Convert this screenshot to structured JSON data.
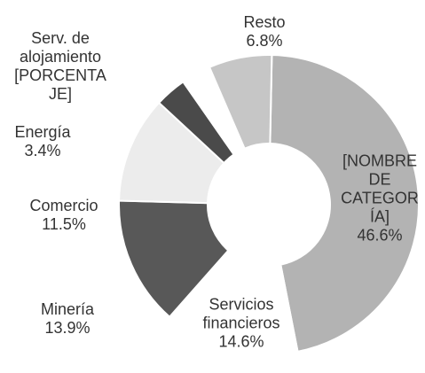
{
  "chart_data": {
    "type": "donut",
    "categories": [
      "[NOMBRE DE CATEGORÍA]",
      "Servicios financieros",
      "Minería",
      "Comercio",
      "Energía",
      "Serv. de alojamiento",
      "Resto"
    ],
    "values": [
      46.6,
      14.6,
      13.9,
      11.5,
      3.4,
      3.2,
      6.8
    ],
    "value_labels": [
      "46.6%",
      "14.6%",
      "13.9%",
      "11.5%",
      "3.4%",
      "[PORCENTAJE]",
      "6.8%"
    ],
    "colors": [
      "#b3b3b3",
      "#ffffff",
      "#585858",
      "#ececec",
      "#4a4a4a",
      "#ffffff",
      "#c6c6c6"
    ]
  }
}
